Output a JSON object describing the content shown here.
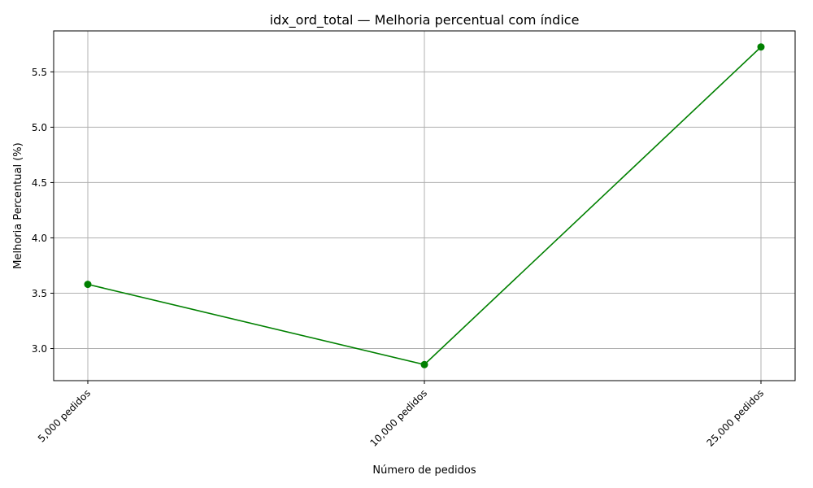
{
  "chart_data": {
    "type": "line",
    "title": "idx_ord_total — Melhoria percentual com índice",
    "xlabel": "Número de pedidos",
    "ylabel": "Melhoria Percentual (%)",
    "categories": [
      "5,000 pedidos",
      "10,000 pedidos",
      "25,000 pedidos"
    ],
    "series": [
      {
        "values": [
          3.58,
          2.855,
          5.725
        ],
        "color": "#008000",
        "marker": "circle"
      }
    ],
    "ylim": [
      2.71,
      5.87
    ],
    "yticks": [
      3.0,
      3.5,
      4.0,
      4.5,
      5.0,
      5.5
    ],
    "ytick_labels": [
      "3.0",
      "3.5",
      "4.0",
      "4.5",
      "5.0",
      "5.5"
    ],
    "grid": true,
    "legend": "none",
    "colors": {
      "grid": "#b0b0b0",
      "axes": "#000000"
    }
  }
}
